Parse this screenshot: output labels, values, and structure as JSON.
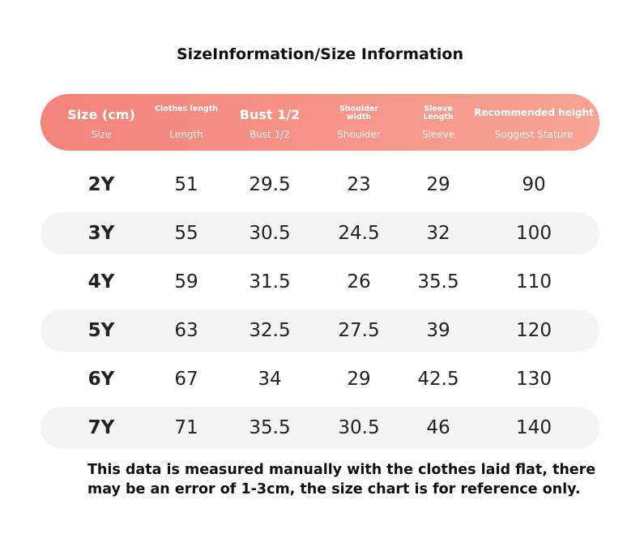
{
  "title": "SizeInformation/Size Information",
  "header": [
    {
      "main": "Size (cm)",
      "sub": "Size"
    },
    {
      "main": "Clothes length",
      "sub": "Length"
    },
    {
      "main": "Bust 1/2",
      "sub": "Bust 1/2"
    },
    {
      "main": "Shoulder width",
      "sub": "Shoulder"
    },
    {
      "main": "Sleeve Length",
      "sub": "Sleeve"
    },
    {
      "main": "Recommended height",
      "sub": "Suggest Stature"
    }
  ],
  "rows": [
    [
      "2Y",
      51,
      29.5,
      23,
      29,
      90
    ],
    [
      "3Y",
      55,
      30.5,
      24.5,
      32,
      100
    ],
    [
      "4Y",
      59,
      31.5,
      26,
      35.5,
      110
    ],
    [
      "5Y",
      63,
      32.5,
      27.5,
      39,
      120
    ],
    [
      "6Y",
      67,
      34,
      29,
      42.5,
      130
    ],
    [
      "7Y",
      71,
      35.5,
      30.5,
      46,
      140
    ]
  ],
  "note": [
    "This data is measured manually with the clothes laid flat, there",
    "may be an error of 1-3cm, the size chart is for reference only."
  ]
}
